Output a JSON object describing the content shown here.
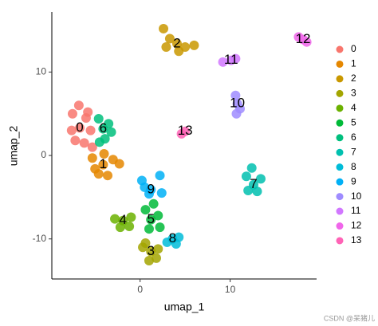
{
  "chart_data": {
    "type": "scatter",
    "x_label": "umap_1",
    "y_label": "umap_2",
    "xlim": [
      -9.8,
      19.6
    ],
    "ylim": [
      -14.8,
      17.2
    ],
    "xticks": [
      0,
      10
    ],
    "yticks": [
      -10,
      0,
      10
    ],
    "series": [
      {
        "name": "0",
        "color": "#F8766D",
        "x": [
          -6.7,
          -7.5,
          -5.8,
          -6.2,
          -7.2,
          -5.5,
          -6.8,
          -7.6,
          -6.0,
          -5.3
        ],
        "y": [
          3.3,
          5.0,
          5.2,
          1.5,
          1.8,
          3.0,
          6.0,
          3.0,
          4.5,
          1.0
        ]
      },
      {
        "name": "1",
        "color": "#E58700",
        "x": [
          -4.1,
          -5.3,
          -3.0,
          -4.6,
          -3.6,
          -2.3,
          -5.0,
          -4.0
        ],
        "y": [
          -1.1,
          -0.3,
          -0.5,
          -2.2,
          -2.4,
          -1.0,
          -1.6,
          0.2
        ]
      },
      {
        "name": "2",
        "color": "#C99800",
        "x": [
          4.1,
          2.6,
          3.3,
          5.0,
          6.0,
          4.3,
          2.9
        ],
        "y": [
          13.4,
          15.2,
          14.0,
          13.0,
          13.2,
          12.5,
          13.0
        ]
      },
      {
        "name": "3",
        "color": "#A3A500",
        "x": [
          1.2,
          0.3,
          2.0,
          1.0,
          1.8,
          0.6
        ],
        "y": [
          -11.5,
          -11.0,
          -11.2,
          -12.6,
          -12.3,
          -10.5
        ]
      },
      {
        "name": "4",
        "color": "#6BB100",
        "x": [
          -1.9,
          -2.8,
          -1.0,
          -2.2,
          -1.2
        ],
        "y": [
          -7.8,
          -7.6,
          -7.4,
          -8.6,
          -8.5
        ]
      },
      {
        "name": "5",
        "color": "#00BA38",
        "x": [
          1.2,
          0.6,
          2.0,
          1.0,
          2.2,
          1.5
        ],
        "y": [
          -7.7,
          -6.5,
          -7.2,
          -8.8,
          -8.6,
          -5.8
        ]
      },
      {
        "name": "6",
        "color": "#00BF7D",
        "x": [
          -4.1,
          -4.6,
          -3.5,
          -3.9,
          -4.5,
          -3.2
        ],
        "y": [
          3.2,
          4.4,
          3.8,
          2.0,
          1.6,
          2.8
        ]
      },
      {
        "name": "7",
        "color": "#00C0AF",
        "x": [
          12.6,
          11.8,
          13.4,
          12.0,
          13.0,
          12.4
        ],
        "y": [
          -3.5,
          -2.5,
          -2.8,
          -4.2,
          -4.3,
          -1.5
        ]
      },
      {
        "name": "8",
        "color": "#00BCD8",
        "x": [
          3.6,
          4.3,
          3.0,
          4.0
        ],
        "y": [
          -10.0,
          -9.8,
          -10.4,
          -10.6
        ]
      },
      {
        "name": "9",
        "color": "#00B0F6",
        "x": [
          1.2,
          0.2,
          2.2,
          1.0,
          2.4,
          0.5
        ],
        "y": [
          -4.1,
          -3.0,
          -2.4,
          -4.6,
          -4.5,
          -3.8
        ]
      },
      {
        "name": "10",
        "color": "#9F8CFF",
        "x": [
          10.8,
          10.6,
          11.1,
          10.7
        ],
        "y": [
          6.2,
          7.2,
          5.6,
          5.0
        ]
      },
      {
        "name": "11",
        "color": "#D177FF",
        "x": [
          10.1,
          9.2,
          10.6
        ],
        "y": [
          11.4,
          11.2,
          11.6
        ]
      },
      {
        "name": "12",
        "color": "#F066EA",
        "x": [
          18.1,
          17.6,
          18.5
        ],
        "y": [
          13.9,
          14.2,
          13.6
        ]
      },
      {
        "name": "13",
        "color": "#FF63B6",
        "x": [
          5.0,
          4.6
        ],
        "y": [
          2.9,
          2.6
        ]
      }
    ],
    "watermark": "CSDN @呆猪儿"
  }
}
